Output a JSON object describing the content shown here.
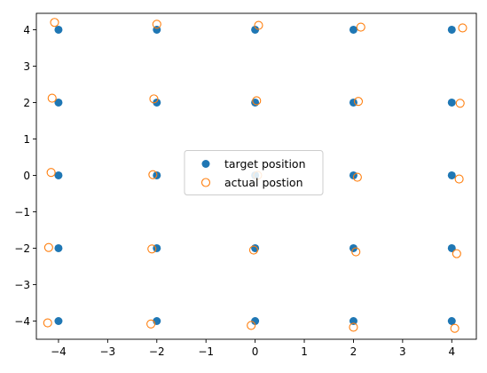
{
  "chart_data": {
    "type": "scatter",
    "title": "",
    "xlabel": "",
    "ylabel": "",
    "xlim": [
      -4.45,
      4.5
    ],
    "ylim": [
      -4.5,
      4.45
    ],
    "xticks": [
      -4,
      -3,
      -2,
      -1,
      0,
      1,
      2,
      3,
      4
    ],
    "yticks": [
      -4,
      -3,
      -2,
      -1,
      0,
      1,
      2,
      3,
      4
    ],
    "grid": false,
    "legend_position": "center",
    "series": [
      {
        "name": "target position",
        "marker": "filled-circle",
        "color": "#1f77b4",
        "x": [
          -4,
          -2,
          0,
          2,
          4,
          -4,
          -2,
          0,
          2,
          4,
          -4,
          -2,
          0,
          2,
          4,
          -4,
          -2,
          0,
          2,
          4,
          -4,
          -2,
          0,
          2,
          4
        ],
        "y": [
          4,
          4,
          4,
          4,
          4,
          2,
          2,
          2,
          2,
          2,
          0,
          0,
          0,
          0,
          0,
          -2,
          -2,
          -2,
          -2,
          -2,
          -4,
          -4,
          -4,
          -4,
          -4
        ]
      },
      {
        "name": "actual postion",
        "marker": "open-circle",
        "color": "#ff7f0e",
        "x": [
          -4.08,
          -2.0,
          0.07,
          2.15,
          4.22,
          -4.13,
          -2.06,
          0.03,
          2.1,
          4.17,
          -4.15,
          -2.08,
          0.05,
          2.08,
          4.15,
          -4.2,
          -2.1,
          -0.03,
          2.05,
          4.1,
          -4.22,
          -2.12,
          -0.08,
          2.0,
          4.06
        ],
        "y": [
          4.2,
          4.15,
          4.12,
          4.07,
          4.05,
          2.12,
          2.1,
          2.05,
          2.03,
          1.98,
          0.08,
          0.02,
          0.0,
          -0.05,
          -0.1,
          -1.98,
          -2.02,
          -2.05,
          -2.1,
          -2.15,
          -4.05,
          -4.08,
          -4.12,
          -4.17,
          -4.2
        ]
      }
    ]
  }
}
